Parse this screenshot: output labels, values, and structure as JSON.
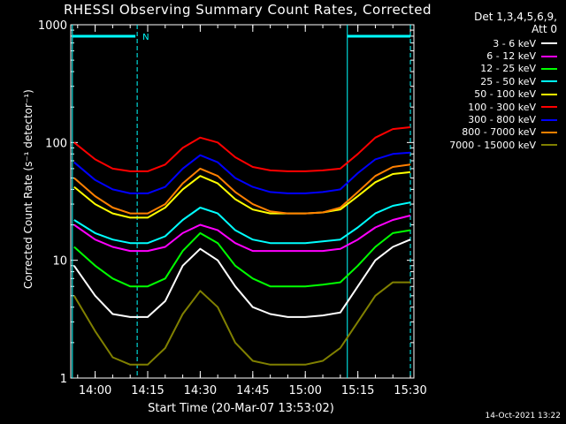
{
  "chart_data": {
    "type": "line",
    "title": "RHESSI Observing Summary Count Rates, Corrected",
    "xlabel": "Start Time (20-Mar-07 13:53:02)",
    "ylabel": "Corrected Count Rate (s⁻¹ detector⁻¹)",
    "y_scale": "log",
    "ylim": [
      1,
      1000
    ],
    "xlim": [
      "13:53:02",
      "15:31:00"
    ],
    "x_ticks": [
      "14:00",
      "14:15",
      "14:30",
      "14:45",
      "15:00",
      "15:15",
      "15:30"
    ],
    "y_ticks": [
      "1",
      "10",
      "100",
      "1000"
    ],
    "detector_label": "Det 1,3,4,5,6,9,",
    "attenuator_label": "Att 0",
    "night_marker_label": "N",
    "series_times": [
      "13:54",
      "14:00",
      "14:05",
      "14:10",
      "14:15",
      "14:20",
      "14:25",
      "14:30",
      "14:35",
      "14:40",
      "14:45",
      "14:50",
      "14:55",
      "15:00",
      "15:05",
      "15:10",
      "15:15",
      "15:20",
      "15:25",
      "15:30"
    ],
    "series": [
      {
        "name": "3 - 6 keV",
        "color": "#ffffff",
        "values": [
          9,
          5,
          3.5,
          3.3,
          3.3,
          4.5,
          9,
          12.5,
          10,
          6,
          4,
          3.5,
          3.3,
          3.3,
          3.4,
          3.6,
          6,
          10,
          13,
          15
        ]
      },
      {
        "name": "6 - 12 keV",
        "color": "#ff00ff",
        "values": [
          20,
          15,
          13,
          12,
          12,
          13,
          17,
          20,
          18,
          14,
          12,
          12,
          12,
          12,
          12,
          12.5,
          15,
          19,
          22,
          24
        ]
      },
      {
        "name": "12 - 25 keV",
        "color": "#00ff00",
        "values": [
          13,
          9,
          7,
          6,
          6,
          7,
          12,
          17,
          14,
          9,
          7,
          6,
          6,
          6,
          6.2,
          6.5,
          9,
          13,
          17,
          18
        ]
      },
      {
        "name": "25 - 50 keV",
        "color": "#00ffff",
        "values": [
          22,
          17,
          15,
          14,
          14,
          16,
          22,
          28,
          25,
          18,
          15,
          14,
          14,
          14,
          14.5,
          15,
          19,
          25,
          29,
          31
        ]
      },
      {
        "name": "50 - 100 keV",
        "color": "#ffff00",
        "values": [
          42,
          30,
          25,
          23,
          23,
          28,
          40,
          52,
          45,
          33,
          27,
          25,
          25,
          25,
          25.5,
          27,
          35,
          46,
          54,
          56
        ]
      },
      {
        "name": "100 - 300 keV",
        "color": "#ff0000",
        "values": [
          100,
          72,
          60,
          57,
          57,
          65,
          90,
          110,
          100,
          75,
          62,
          58,
          57,
          57,
          58,
          60,
          80,
          110,
          130,
          135
        ]
      },
      {
        "name": "300 - 800 keV",
        "color": "#0000ff",
        "values": [
          68,
          48,
          40,
          37,
          37,
          42,
          60,
          78,
          68,
          50,
          42,
          38,
          37,
          37,
          38,
          40,
          55,
          72,
          80,
          82
        ]
      },
      {
        "name": "800 - 7000 keV",
        "color": "#ff8000",
        "values": [
          50,
          35,
          28,
          25,
          25,
          30,
          45,
          60,
          52,
          38,
          30,
          26,
          25,
          25,
          25.5,
          28,
          38,
          52,
          62,
          65
        ]
      },
      {
        "name": "7000 - 15000 keV",
        "color": "#808000",
        "values": [
          5,
          2.5,
          1.5,
          1.3,
          1.3,
          1.8,
          3.5,
          5.5,
          4,
          2,
          1.4,
          1.3,
          1.3,
          1.3,
          1.4,
          1.8,
          3,
          5,
          6.5,
          6.5
        ]
      }
    ]
  },
  "footer": {
    "timestamp": "14-Oct-2021 13:22"
  }
}
